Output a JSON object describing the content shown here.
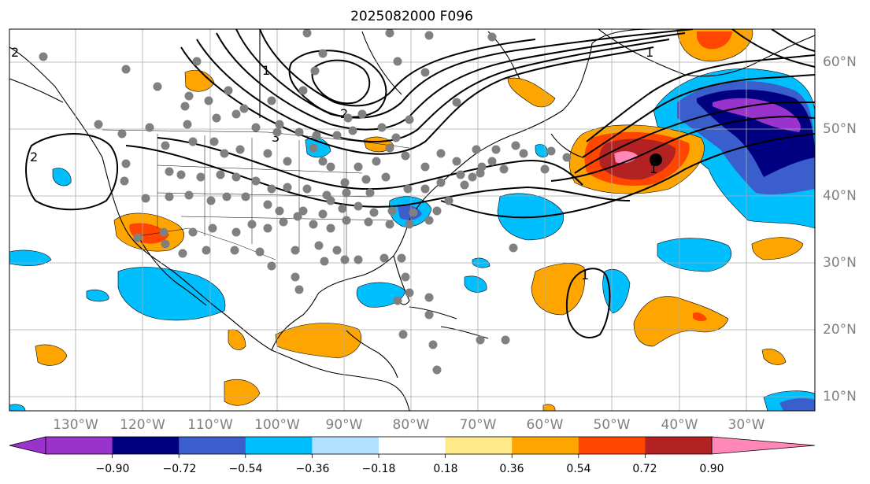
{
  "title": "2025082000 F096",
  "longitude_labels": [
    "130°W",
    "120°W",
    "110°W",
    "100°W",
    "90°W",
    "80°W",
    "70°W",
    "60°W",
    "50°W",
    "40°W",
    "30°W"
  ],
  "latitude_labels": [
    "60°N",
    "50°N",
    "40°N",
    "30°N",
    "20°N",
    "10°N"
  ],
  "colorbar": {
    "tick_labels": [
      "−0.90",
      "−0.72",
      "−0.54",
      "−0.36",
      "−0.18",
      "0.18",
      "0.36",
      "0.54",
      "0.72",
      "0.90"
    ],
    "colors": [
      "#9933cc",
      "#000080",
      "#3a5fcd",
      "#00bfff",
      "#b0e2ff",
      "#ffffff",
      "#ffea8a",
      "#ffa500",
      "#ff4500",
      "#b22222",
      "#ff88b8"
    ]
  },
  "contour_labels": [
    "2",
    "2",
    "2",
    "3",
    "1",
    "1",
    "1",
    "1"
  ],
  "colors": {
    "land_outline": "#000000",
    "grid": "#aaaaaa",
    "station": "#808080",
    "contour": "#000000"
  }
}
